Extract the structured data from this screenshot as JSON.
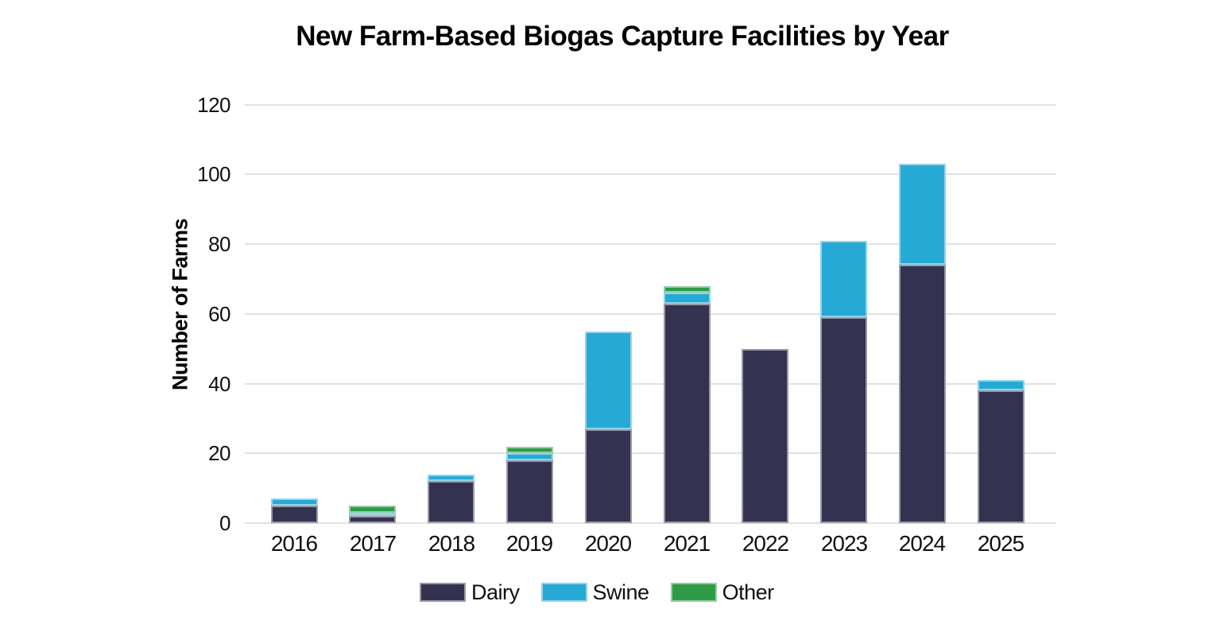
{
  "title": "New Farm-Based Biogas Capture Facilities by Year",
  "chart_data": {
    "type": "bar",
    "stacked": true,
    "title": "New Farm-Based Biogas Capture Facilities by Year",
    "xlabel": "",
    "ylabel": "Number of Farms",
    "ylim": [
      0,
      120
    ],
    "yticks": [
      0,
      20,
      40,
      60,
      80,
      100,
      120
    ],
    "grid": true,
    "legend_position": "bottom",
    "categories": [
      "2016",
      "2017",
      "2018",
      "2019",
      "2020",
      "2021",
      "2022",
      "2023",
      "2024",
      "2025"
    ],
    "series": [
      {
        "name": "Dairy",
        "color": "#333250",
        "values": [
          5,
          2,
          12,
          18,
          27,
          63,
          50,
          59,
          74,
          38
        ]
      },
      {
        "name": "Swine",
        "color": "#27a9d6",
        "values": [
          2,
          1,
          2,
          2,
          28,
          3,
          0,
          22,
          29,
          3
        ]
      },
      {
        "name": "Other",
        "color": "#2e9b47",
        "values": [
          0,
          2,
          0,
          2,
          0,
          2,
          0,
          0,
          0,
          0
        ]
      }
    ],
    "totals": [
      7,
      5,
      14,
      22,
      55,
      68,
      50,
      81,
      103,
      41
    ]
  },
  "colors": {
    "background": "#ffffff",
    "gridline": "#e1e1e1",
    "text": "#111111",
    "dairy": "#333250",
    "swine": "#27a9d6",
    "other": "#2e9b47"
  }
}
